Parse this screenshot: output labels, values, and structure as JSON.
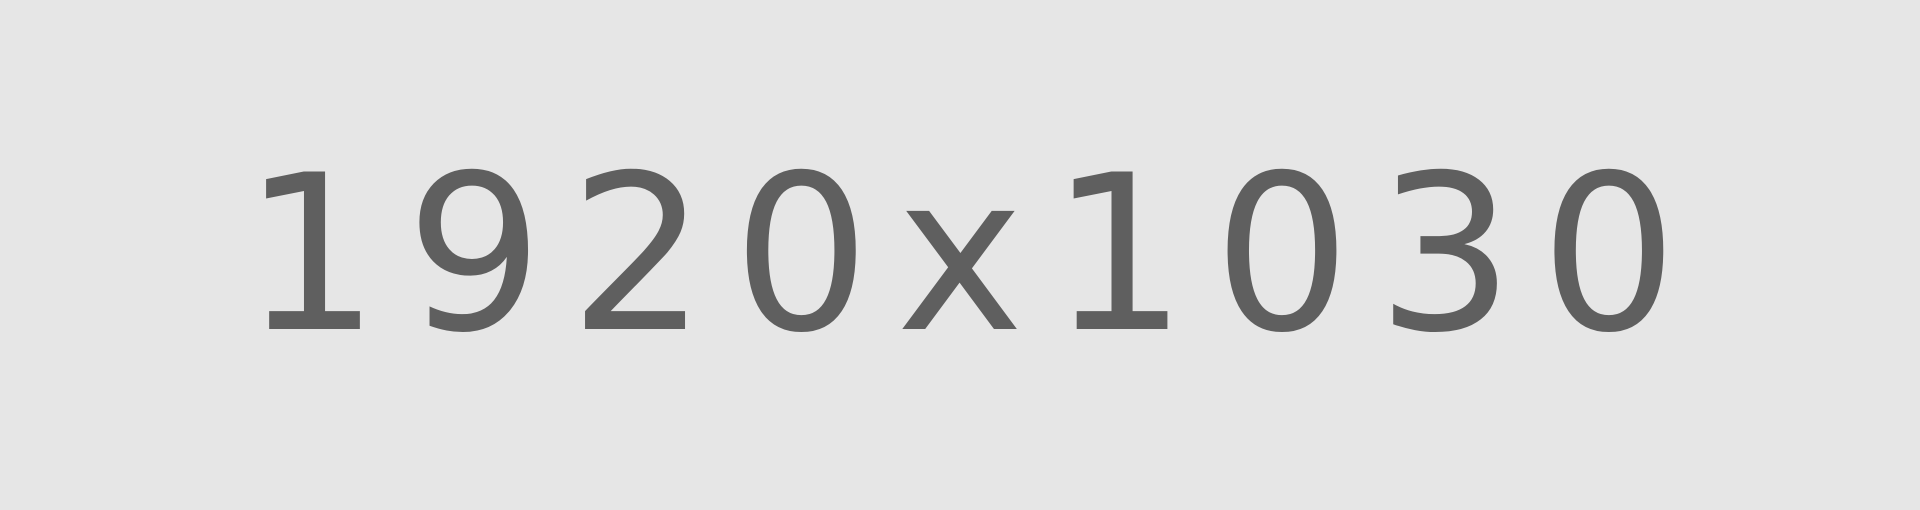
{
  "placeholder": {
    "text": "1920x1030",
    "background_color": "#e6e6e6",
    "text_color": "#5f5f5f"
  }
}
